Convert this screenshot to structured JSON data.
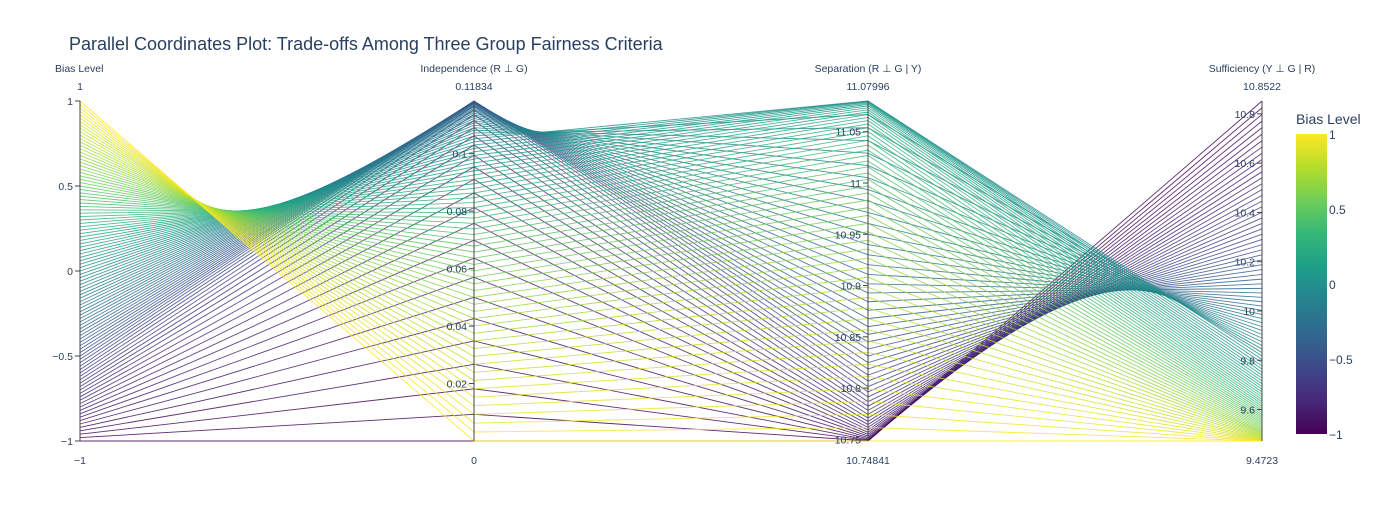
{
  "chart_data": {
    "type": "parallel_coordinates",
    "title": "Parallel Coordinates Plot: Trade-offs Among Three Group Fairness Criteria",
    "dimensions": [
      {
        "label": "Bias Level",
        "range": [
          -1,
          1
        ],
        "range_labels": {
          "min": "−1",
          "max": "1"
        },
        "ticks": [
          -1,
          -0.5,
          0,
          0.5,
          1
        ],
        "tick_labels": [
          "−1",
          "−0.5",
          "0",
          "0.5",
          "1"
        ]
      },
      {
        "label": "Independence (R ⊥ G)",
        "range": [
          0,
          0.11834
        ],
        "range_labels": {
          "min": "0",
          "max": "0.11834"
        },
        "ticks": [
          0.02,
          0.04,
          0.06,
          0.08,
          0.1
        ],
        "tick_labels": [
          "0.02",
          "0.04",
          "0.06",
          "0.08",
          "0.1"
        ]
      },
      {
        "label": "Separation (R ⊥ G | Y)",
        "range": [
          10.74841,
          11.07996
        ],
        "range_labels": {
          "min": "10.74841",
          "max": "11.07996"
        },
        "ticks": [
          10.75,
          10.8,
          10.85,
          10.9,
          10.95,
          11,
          11.05
        ],
        "tick_labels": [
          "10.75",
          "10.8",
          "10.85",
          "10.9",
          "10.95",
          "11",
          "11.05"
        ]
      },
      {
        "label": "Sufficiency (Y ⊥ G | R)",
        "range": [
          9.4723,
          10.8522
        ],
        "range_labels": {
          "min": "9.4723",
          "max": "10.8522"
        },
        "ticks": [
          9.6,
          9.8,
          10,
          10.2,
          10.4,
          10.6,
          10.8
        ],
        "tick_labels": [
          "9.6",
          "9.8",
          "10",
          "10.2",
          "10.4",
          "10.6",
          "10.8"
        ]
      }
    ],
    "line_color_by": "Bias Level",
    "colorscale": "viridis",
    "colorscale_stops": [
      "#440154",
      "#482878",
      "#3e4989",
      "#31688e",
      "#26828e",
      "#1f9e89",
      "#35b779",
      "#6ece58",
      "#b5de2b",
      "#fde725"
    ],
    "colorbar": {
      "title": "Bias Level",
      "ticks": [
        1,
        0.5,
        0,
        -0.5,
        -1
      ],
      "tick_labels": [
        "1",
        "0.5",
        "0",
        "−0.5",
        "−1"
      ],
      "range": [
        -1,
        1
      ]
    },
    "n_lines": 101,
    "bias_min": -1,
    "bias_max": 1,
    "independence_rule": "0.11834 * (1 - ((t + 0.5) / 1.5)^2) for t >= -0.5; 0.11834 * (1 - ((t + 0.5) / 0.5)^2) for t < -0.5",
    "separation_rule": "11.07996 - (11.07996 - 10.74841) * t^2 for t >= 0; 11.07996 - (11.07996 - 10.74841) * (1 - (1 + t)^2) for t < 0",
    "sufficiency_rule": "9.4723 + (10.8522 - 9.4723) * ((1 - t) / 2)^2"
  }
}
